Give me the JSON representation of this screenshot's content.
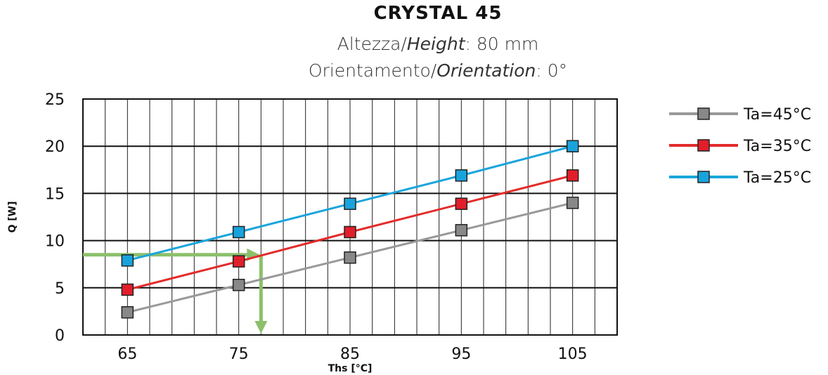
{
  "chart_data": {
    "type": "line",
    "title": "CRYSTAL 45",
    "subtitle_lines": [
      {
        "label": "Altezza/",
        "label_italic": "Height",
        "value": ": 80 mm"
      },
      {
        "label": "Orientamento/",
        "label_italic": "Orientation",
        "value": ": 0°"
      }
    ],
    "xlabel": "Ths [°C]",
    "ylabel": "Q [W]",
    "x": [
      65,
      75,
      85,
      95,
      105
    ],
    "x_ticks": [
      65,
      75,
      85,
      95,
      105
    ],
    "xlim": [
      61,
      109
    ],
    "ylim": [
      0,
      25
    ],
    "y_ticks": [
      0,
      5,
      10,
      15,
      20,
      25
    ],
    "grid": true,
    "legend_position": "right",
    "series": [
      {
        "name": "Ta=45°C",
        "color": "#999999",
        "marker_color": "#888888",
        "values": [
          2.4,
          5.3,
          8.2,
          11.1,
          14.0
        ]
      },
      {
        "name": "Ta=35°C",
        "color": "#e32b2b",
        "marker_color": "#e01f2a",
        "values": [
          4.8,
          7.8,
          10.9,
          13.9,
          16.9
        ]
      },
      {
        "name": "Ta=25°C",
        "color": "#1aa5dc",
        "marker_color": "#19a3dd",
        "values": [
          7.9,
          10.9,
          13.9,
          16.9,
          20.0
        ]
      }
    ],
    "annotation": {
      "color": "#8cc06b",
      "y_value": 8.5,
      "x_value": 77
    }
  }
}
